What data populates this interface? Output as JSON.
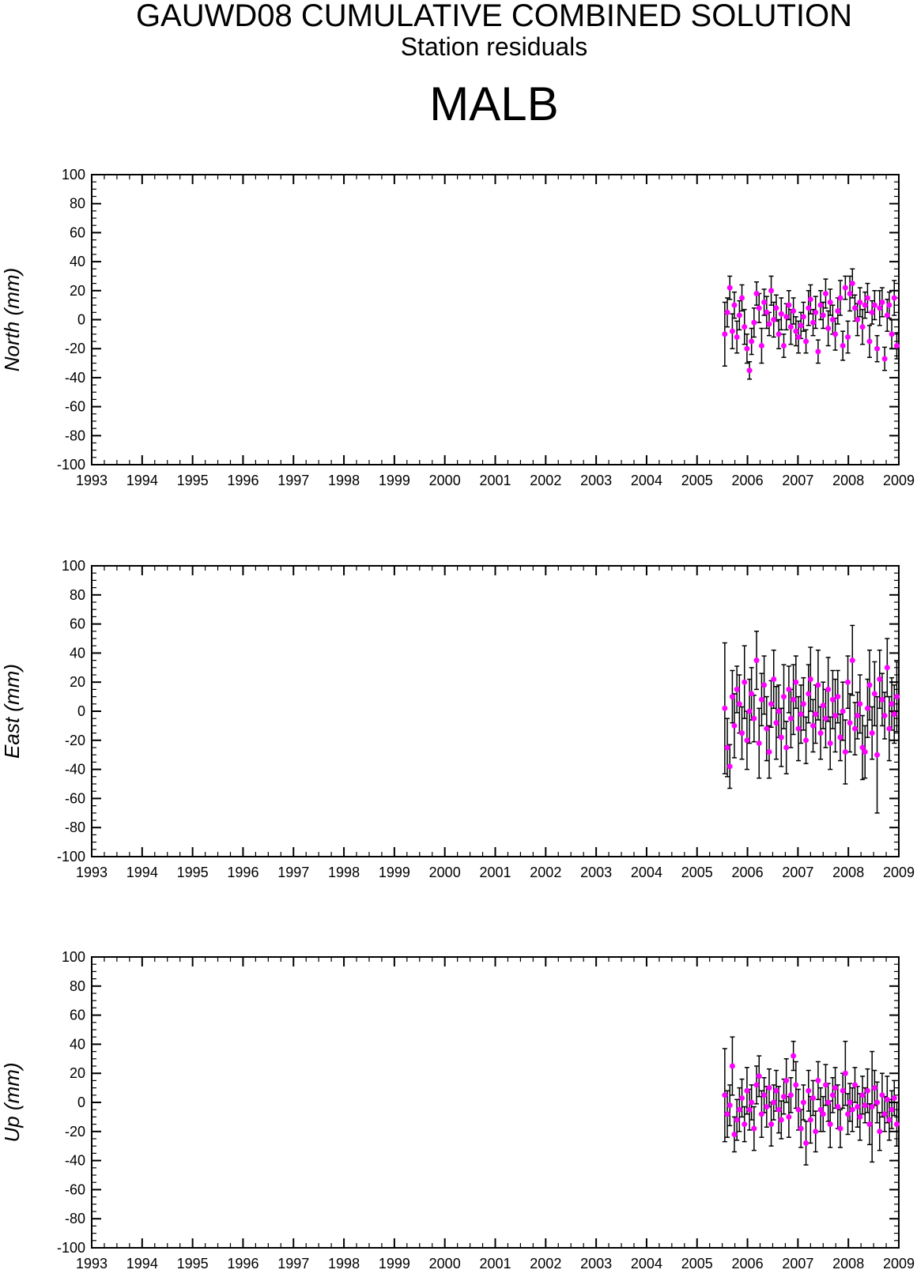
{
  "header": {
    "title": "GAUWD08 CUMULATIVE COMBINED SOLUTION",
    "subtitle": "Station residuals",
    "station": "MALB"
  },
  "colors": {
    "point": "#ff00ff",
    "errorbar": "#000000",
    "axis": "#000000"
  },
  "chart_data": [
    {
      "type": "scatter",
      "title": "",
      "xlabel": "",
      "ylabel": "North (mm)",
      "xlim": [
        1993,
        2009
      ],
      "ylim": [
        -100,
        100
      ],
      "xticks": [
        "1993",
        "1994",
        "1995",
        "1996",
        "1997",
        "1998",
        "1999",
        "2000",
        "2001",
        "2002",
        "2003",
        "2004",
        "2005",
        "2006",
        "2007",
        "2008",
        "2009"
      ],
      "yticks": [
        "100",
        "80",
        "60",
        "40",
        "20",
        "0",
        "-20",
        "-40",
        "-60",
        "-80",
        "-100"
      ],
      "grid": false,
      "series": [
        {
          "x": [
            2005.55,
            2005.6,
            2005.65,
            2005.7,
            2005.74,
            2005.79,
            2005.84,
            2005.89,
            2005.94,
            2005.99,
            2006.04,
            2006.08,
            2006.13,
            2006.18,
            2006.23,
            2006.28,
            2006.33,
            2006.38,
            2006.43,
            2006.47,
            2006.52,
            2006.57,
            2006.62,
            2006.67,
            2006.72,
            2006.77,
            2006.82,
            2006.86,
            2006.91,
            2006.96,
            2007.01,
            2007.06,
            2007.11,
            2007.16,
            2007.21,
            2007.25,
            2007.3,
            2007.35,
            2007.4,
            2007.45,
            2007.5,
            2007.55,
            2007.6,
            2007.64,
            2007.69,
            2007.74,
            2007.79,
            2007.84,
            2007.89,
            2007.94,
            2007.99,
            2008.03,
            2008.08,
            2008.13,
            2008.18,
            2008.23,
            2008.28,
            2008.33,
            2008.38,
            2008.42,
            2008.47,
            2008.52,
            2008.57,
            2008.62,
            2008.67,
            2008.72,
            2008.77,
            2008.81,
            2008.86,
            2008.91,
            2008.96
          ],
          "y": [
            -10,
            5,
            22,
            -8,
            10,
            -12,
            3,
            15,
            -5,
            -20,
            -35,
            -15,
            -2,
            18,
            8,
            -18,
            12,
            5,
            -3,
            20,
            0,
            8,
            -10,
            4,
            -18,
            2,
            10,
            -5,
            6,
            -8,
            -12,
            -4,
            2,
            -15,
            8,
            14,
            -2,
            5,
            -22,
            10,
            3,
            18,
            -6,
            12,
            0,
            -10,
            6,
            15,
            -18,
            22,
            -12,
            18,
            25,
            8,
            0,
            12,
            -5,
            10,
            15,
            -15,
            5,
            10,
            -20,
            8,
            12,
            -27,
            3,
            10,
            -10,
            15,
            -18
          ],
          "err": [
            22,
            10,
            8,
            12,
            9,
            11,
            10,
            9,
            12,
            10,
            6,
            9,
            10,
            8,
            10,
            12,
            9,
            11,
            8,
            10,
            12,
            9,
            10,
            11,
            8,
            9,
            10,
            12,
            9,
            10,
            11,
            9,
            10,
            8,
            12,
            10,
            9,
            11,
            8,
            10,
            9,
            10,
            12,
            9,
            10,
            11,
            9,
            12,
            10,
            8,
            11,
            12,
            10,
            9,
            11,
            10,
            12,
            9,
            10,
            11,
            8,
            10,
            9,
            12,
            10,
            8,
            11,
            9,
            10,
            12,
            9
          ]
        }
      ]
    },
    {
      "type": "scatter",
      "title": "",
      "xlabel": "",
      "ylabel": "East (mm)",
      "xlim": [
        1993,
        2009
      ],
      "ylim": [
        -100,
        100
      ],
      "xticks": [
        "1993",
        "1994",
        "1995",
        "1996",
        "1997",
        "1998",
        "1999",
        "2000",
        "2001",
        "2002",
        "2003",
        "2004",
        "2005",
        "2006",
        "2007",
        "2008",
        "2009"
      ],
      "yticks": [
        "100",
        "80",
        "60",
        "40",
        "20",
        "0",
        "-20",
        "-40",
        "-60",
        "-80",
        "-100"
      ],
      "grid": false,
      "series": [
        {
          "x": [
            2005.55,
            2005.6,
            2005.65,
            2005.7,
            2005.74,
            2005.79,
            2005.84,
            2005.89,
            2005.94,
            2005.99,
            2006.04,
            2006.08,
            2006.13,
            2006.18,
            2006.23,
            2006.28,
            2006.33,
            2006.38,
            2006.43,
            2006.47,
            2006.52,
            2006.57,
            2006.62,
            2006.67,
            2006.72,
            2006.77,
            2006.82,
            2006.86,
            2006.91,
            2006.96,
            2007.01,
            2007.06,
            2007.11,
            2007.16,
            2007.21,
            2007.25,
            2007.3,
            2007.35,
            2007.4,
            2007.45,
            2007.5,
            2007.55,
            2007.6,
            2007.64,
            2007.69,
            2007.74,
            2007.79,
            2007.84,
            2007.89,
            2007.94,
            2007.99,
            2008.03,
            2008.08,
            2008.13,
            2008.18,
            2008.23,
            2008.28,
            2008.33,
            2008.38,
            2008.42,
            2008.47,
            2008.52,
            2008.57,
            2008.62,
            2008.67,
            2008.72,
            2008.77,
            2008.81,
            2008.86,
            2008.91,
            2008.96
          ],
          "y": [
            2,
            -25,
            -38,
            10,
            -10,
            15,
            5,
            -15,
            20,
            -20,
            0,
            12,
            -5,
            35,
            -22,
            8,
            18,
            -12,
            -28,
            5,
            22,
            -8,
            0,
            -18,
            10,
            -25,
            15,
            -5,
            8,
            20,
            -12,
            -2,
            5,
            -20,
            12,
            22,
            -10,
            -2,
            18,
            -15,
            4,
            -5,
            15,
            -22,
            8,
            -3,
            10,
            -18,
            0,
            -28,
            20,
            -8,
            35,
            -12,
            -3,
            5,
            -25,
            -28,
            2,
            18,
            -15,
            12,
            -30,
            22,
            8,
            -3,
            30,
            -12,
            5,
            -2,
            10
          ],
          "err": [
            45,
            20,
            15,
            18,
            22,
            16,
            20,
            18,
            25,
            20,
            22,
            18,
            16,
            20,
            24,
            18,
            20,
            22,
            18,
            16,
            20,
            25,
            18,
            20,
            22,
            18,
            16,
            20,
            24,
            18,
            22,
            20,
            18,
            16,
            20,
            22,
            18,
            20,
            24,
            18,
            16,
            20,
            22,
            18,
            20,
            25,
            18,
            16,
            20,
            22,
            18,
            20,
            24,
            18,
            16,
            20,
            22,
            18,
            20,
            24,
            18,
            22,
            40,
            20,
            18,
            16,
            20,
            22,
            18,
            20,
            24
          ]
        }
      ]
    },
    {
      "type": "scatter",
      "title": "",
      "xlabel": "",
      "ylabel": "Up (mm)",
      "xlim": [
        1993,
        2009
      ],
      "ylim": [
        -100,
        100
      ],
      "xticks": [
        "1993",
        "1994",
        "1995",
        "1996",
        "1997",
        "1998",
        "1999",
        "2000",
        "2001",
        "2002",
        "2003",
        "2004",
        "2005",
        "2006",
        "2007",
        "2008",
        "2009"
      ],
      "yticks": [
        "100",
        "80",
        "60",
        "40",
        "20",
        "0",
        "-20",
        "-40",
        "-60",
        "-80",
        "-100"
      ],
      "grid": false,
      "series": [
        {
          "x": [
            2005.55,
            2005.6,
            2005.65,
            2005.7,
            2005.74,
            2005.79,
            2005.84,
            2005.89,
            2005.94,
            2005.99,
            2006.04,
            2006.08,
            2006.13,
            2006.18,
            2006.23,
            2006.28,
            2006.33,
            2006.38,
            2006.43,
            2006.47,
            2006.52,
            2006.57,
            2006.62,
            2006.67,
            2006.72,
            2006.77,
            2006.82,
            2006.86,
            2006.91,
            2006.96,
            2007.01,
            2007.06,
            2007.11,
            2007.16,
            2007.21,
            2007.25,
            2007.3,
            2007.35,
            2007.4,
            2007.45,
            2007.5,
            2007.55,
            2007.6,
            2007.64,
            2007.69,
            2007.74,
            2007.79,
            2007.84,
            2007.89,
            2007.94,
            2007.99,
            2008.03,
            2008.08,
            2008.13,
            2008.18,
            2008.23,
            2008.28,
            2008.33,
            2008.38,
            2008.42,
            2008.47,
            2008.52,
            2008.57,
            2008.62,
            2008.67,
            2008.72,
            2008.77,
            2008.81,
            2008.86,
            2008.91,
            2008.96
          ],
          "y": [
            5,
            -8,
            -2,
            25,
            -22,
            -12,
            -5,
            3,
            -15,
            8,
            -5,
            0,
            -18,
            12,
            18,
            -8,
            5,
            -3,
            10,
            -15,
            0,
            8,
            -5,
            -12,
            4,
            15,
            -10,
            5,
            32,
            12,
            -5,
            -18,
            0,
            -28,
            8,
            -12,
            3,
            -20,
            15,
            -5,
            -8,
            12,
            0,
            -15,
            5,
            10,
            -3,
            -18,
            8,
            20,
            -8,
            0,
            -5,
            12,
            -3,
            -10,
            5,
            -2,
            8,
            -15,
            -3,
            10,
            0,
            -20,
            5,
            -8,
            2,
            -12,
            -5,
            3,
            -15
          ],
          "err": [
            32,
            16,
            14,
            20,
            12,
            14,
            15,
            13,
            12,
            16,
            14,
            12,
            15,
            13,
            14,
            16,
            12,
            14,
            13,
            15,
            12,
            14,
            16,
            13,
            12,
            15,
            14,
            12,
            10,
            16,
            14,
            13,
            12,
            15,
            14,
            16,
            12,
            14,
            13,
            15,
            12,
            14,
            13,
            16,
            12,
            14,
            15,
            13,
            12,
            22,
            14,
            13,
            15,
            12,
            14,
            16,
            13,
            12,
            15,
            14,
            38,
            12,
            14,
            13,
            15,
            12,
            16,
            14,
            13,
            12,
            15
          ]
        }
      ]
    }
  ]
}
